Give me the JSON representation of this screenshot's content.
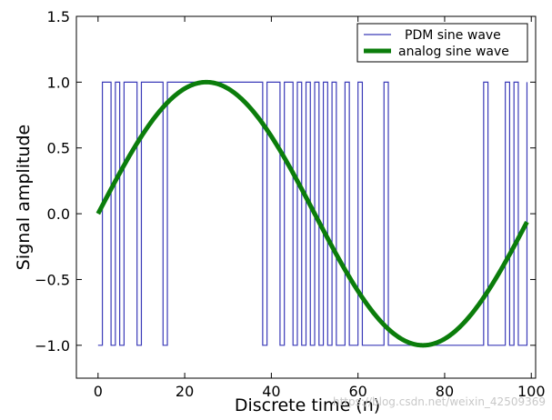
{
  "chart_data": {
    "type": "line",
    "xlabel": "Discrete time (n)",
    "ylabel": "Signal amplitude",
    "xlim": [
      -5,
      101
    ],
    "ylim": [
      -1.25,
      1.5
    ],
    "x_ticks": [
      0,
      20,
      40,
      60,
      80,
      100
    ],
    "x_tick_labels": [
      "0",
      "20",
      "40",
      "60",
      "80",
      "100"
    ],
    "y_ticks": [
      -1.0,
      -0.5,
      0.0,
      0.5,
      1.0,
      1.5
    ],
    "y_tick_labels": [
      "−1.0",
      "−0.5",
      "0.0",
      "0.5",
      "1.0",
      "1.5"
    ],
    "grid": false,
    "legend_position": "top-right",
    "series": [
      {
        "name": "PDM sine wave",
        "kind": "step",
        "color": "#3a3ab8",
        "x": [
          0,
          1,
          2,
          3,
          4,
          5,
          6,
          7,
          8,
          9,
          10,
          11,
          12,
          13,
          14,
          15,
          16,
          17,
          18,
          19,
          20,
          21,
          22,
          23,
          24,
          25,
          26,
          27,
          28,
          29,
          30,
          31,
          32,
          33,
          34,
          35,
          36,
          37,
          38,
          39,
          40,
          41,
          42,
          43,
          44,
          45,
          46,
          47,
          48,
          49,
          50,
          51,
          52,
          53,
          54,
          55,
          56,
          57,
          58,
          59,
          60,
          61,
          62,
          63,
          64,
          65,
          66,
          67,
          68,
          69,
          70,
          71,
          72,
          73,
          74,
          75,
          76,
          77,
          78,
          79,
          80,
          81,
          82,
          83,
          84,
          85,
          86,
          87,
          88,
          89,
          90,
          91,
          92,
          93,
          94,
          95,
          96,
          97,
          98,
          99
        ],
        "values": [
          -1,
          1,
          1,
          -1,
          1,
          -1,
          1,
          1,
          1,
          -1,
          1,
          1,
          1,
          1,
          1,
          -1,
          1,
          1,
          1,
          1,
          1,
          1,
          1,
          1,
          1,
          1,
          1,
          1,
          1,
          1,
          1,
          1,
          1,
          1,
          1,
          1,
          1,
          1,
          -1,
          1,
          1,
          1,
          -1,
          1,
          1,
          -1,
          1,
          -1,
          1,
          -1,
          1,
          -1,
          1,
          -1,
          1,
          -1,
          -1,
          1,
          -1,
          -1,
          1,
          -1,
          -1,
          -1,
          -1,
          -1,
          1,
          -1,
          -1,
          -1,
          -1,
          -1,
          -1,
          -1,
          -1,
          -1,
          -1,
          -1,
          -1,
          -1,
          -1,
          -1,
          -1,
          -1,
          -1,
          -1,
          -1,
          -1,
          -1,
          1,
          -1,
          -1,
          -1,
          -1,
          1,
          -1,
          1,
          -1,
          -1,
          1
        ]
      },
      {
        "name": "analog sine wave",
        "kind": "line",
        "color": "#0b7d0b",
        "function": "sin(2*pi*n/100)",
        "x_range": [
          0,
          99
        ]
      }
    ]
  },
  "watermark": "https://blog.csdn.net/weixin_42509369"
}
